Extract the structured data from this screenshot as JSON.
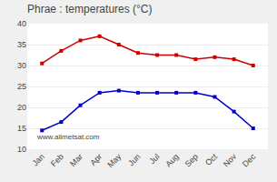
{
  "chart_data": {
    "type": "line",
    "title": "Phrae : temperatures (°C)",
    "categories": [
      "Jan",
      "Feb",
      "Mar",
      "Apr",
      "May",
      "Jun",
      "Jul",
      "Aug",
      "Sep",
      "Oct",
      "Nov",
      "Dec"
    ],
    "series": [
      {
        "color": "#cc0000",
        "values": [
          30.5,
          33.5,
          36.0,
          37.0,
          35.0,
          33.0,
          32.5,
          32.5,
          31.5,
          32.0,
          31.5,
          30.0
        ]
      },
      {
        "color": "#0000cc",
        "values": [
          14.5,
          16.5,
          20.5,
          23.5,
          24.0,
          23.5,
          23.5,
          23.5,
          23.5,
          22.5,
          19.0,
          15.0
        ]
      }
    ],
    "marker": "square",
    "ylim": [
      10,
      40
    ],
    "yticks": [
      10,
      15,
      20,
      25,
      30,
      35,
      40
    ],
    "grid": true,
    "annotations": [
      "www.allmetsat.com"
    ]
  }
}
